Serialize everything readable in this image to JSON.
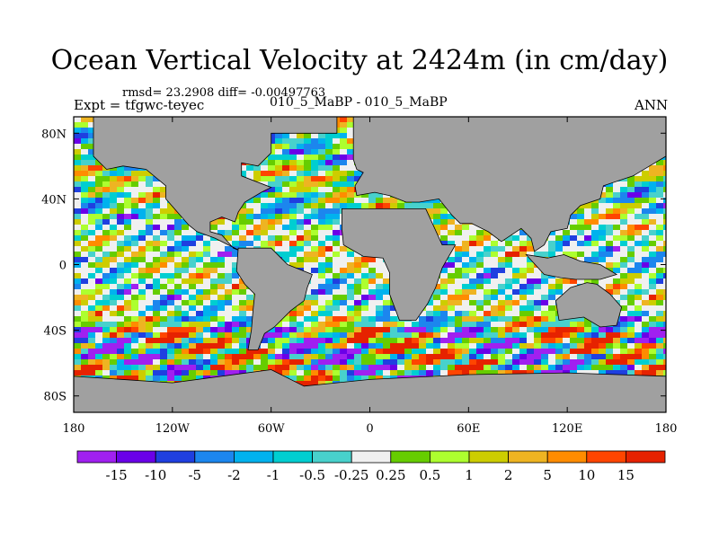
{
  "chart_data": {
    "type": "heatmap",
    "title": "Ocean Vertical Velocity at 2424m (in cm/day)",
    "subtitle": "rmsd= 23.2908 diff= -0.00497763",
    "left_label": "Expt = tfgwc-teyec",
    "center_label": "010_5_MaBP - 010_5_MaBP",
    "right_label": "ANN",
    "x_axis": {
      "range": [
        -180,
        180
      ],
      "ticks": [
        -180,
        -120,
        -60,
        0,
        60,
        120,
        180
      ],
      "tick_labels": [
        "180",
        "120W",
        "60W",
        "0",
        "60E",
        "120E",
        "180"
      ]
    },
    "y_axis": {
      "range": [
        -90,
        90
      ],
      "ticks": [
        80,
        40,
        0,
        -40,
        -80
      ],
      "tick_labels": [
        "80N",
        "40N",
        "0",
        "40S",
        "80S"
      ]
    },
    "colorbar": {
      "levels": [
        "-15",
        "-10",
        "-5",
        "-2",
        "-1",
        "-0.5",
        "-0.25",
        "0.25",
        "0.5",
        "1",
        "2",
        "5",
        "10",
        "15"
      ],
      "colors": [
        "#a020f0",
        "#6a00e8",
        "#1f3fe0",
        "#1c86ee",
        "#00b2ee",
        "#00ced1",
        "#48d1cc",
        "#f0f0f0",
        "#66cd00",
        "#adff2f",
        "#cdcd00",
        "#eeb422",
        "#ff8c00",
        "#ff4500",
        "#e62200"
      ],
      "orientation": "horizontal",
      "placement": "bottom"
    },
    "land_color": "#a0a0a0",
    "grid": false
  }
}
